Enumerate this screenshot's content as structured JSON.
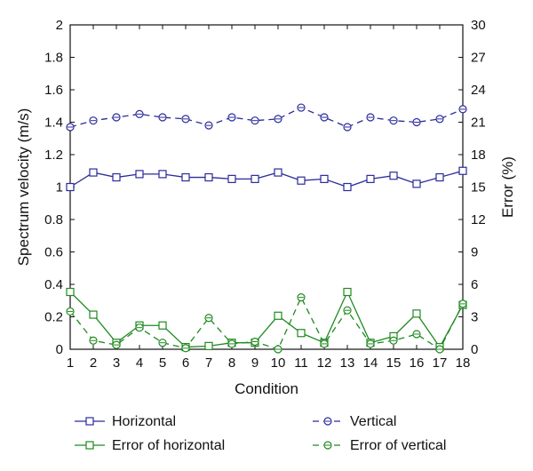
{
  "chart_data": {
    "type": "line",
    "x": [
      1,
      2,
      3,
      4,
      5,
      6,
      7,
      8,
      9,
      10,
      11,
      12,
      13,
      14,
      15,
      16,
      17,
      18
    ],
    "xlabel": "Condition",
    "ylabel": "Spectrum velocity (m/s)",
    "y2label": "Error (%)",
    "xlim": [
      1,
      18
    ],
    "ylim": [
      0,
      2
    ],
    "y2lim": [
      0,
      30
    ],
    "x_ticks": [
      "1",
      "2",
      "3",
      "4",
      "5",
      "6",
      "7",
      "8",
      "9",
      "10",
      "11",
      "12",
      "13",
      "14",
      "15",
      "16",
      "17",
      "18"
    ],
    "y_ticks": [
      "0",
      "0.2",
      "0.4",
      "0.6",
      "0.8",
      "1",
      "1.2",
      "1.4",
      "1.6",
      "1.8",
      "2"
    ],
    "y2_ticks": [
      "0",
      "3",
      "6",
      "9",
      "12",
      "15",
      "18",
      "21",
      "24",
      "27",
      "30"
    ],
    "grid": false,
    "legend_position": "bottom",
    "colors": {
      "blue": "#2b2b9a",
      "green": "#1f8a1f"
    },
    "series": [
      {
        "name": "Horizontal",
        "axis": "left",
        "marker": "square",
        "dash": "solid",
        "color": "#2b2b9a",
        "values": [
          1.0,
          1.09,
          1.06,
          1.08,
          1.08,
          1.06,
          1.06,
          1.05,
          1.05,
          1.09,
          1.04,
          1.05,
          1.0,
          1.05,
          1.07,
          1.02,
          1.06,
          1.1
        ]
      },
      {
        "name": "Vertical",
        "axis": "left",
        "marker": "circle",
        "dash": "dashed",
        "color": "#2b2b9a",
        "values": [
          1.37,
          1.41,
          1.43,
          1.45,
          1.43,
          1.42,
          1.38,
          1.43,
          1.41,
          1.42,
          1.49,
          1.43,
          1.37,
          1.43,
          1.41,
          1.4,
          1.42,
          1.48
        ]
      },
      {
        "name": "Error of horizontal",
        "axis": "right",
        "marker": "square",
        "dash": "solid",
        "color": "#1f8a1f",
        "values": [
          5.3,
          3.2,
          0.6,
          2.2,
          2.2,
          0.2,
          0.3,
          0.6,
          0.6,
          3.1,
          1.5,
          0.6,
          5.3,
          0.6,
          1.2,
          3.3,
          0.2,
          4.1
        ]
      },
      {
        "name": "Error of vertical",
        "axis": "right",
        "marker": "circle",
        "dash": "dashed",
        "color": "#1f8a1f",
        "values": [
          3.5,
          0.8,
          0.4,
          2.0,
          0.6,
          0.1,
          2.9,
          0.5,
          0.7,
          0.0,
          4.8,
          0.5,
          3.6,
          0.5,
          0.8,
          1.4,
          0.0,
          4.2
        ]
      }
    ]
  }
}
